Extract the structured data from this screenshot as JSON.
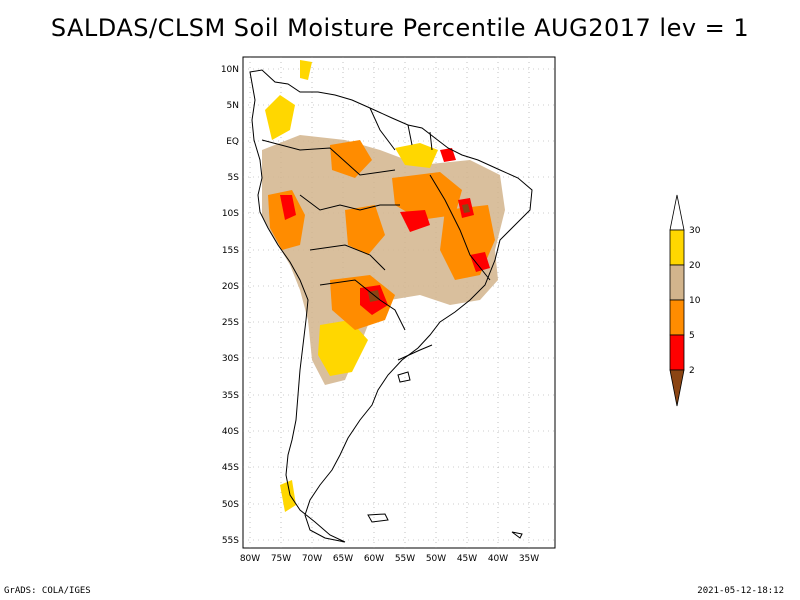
{
  "title": "SALDAS/CLSM Soil Moisture Percentile AUG2017 lev = 1",
  "footer": {
    "left": "GrADS: COLA/IGES",
    "right": "2021-05-12-18:12"
  },
  "map": {
    "lat_labels": [
      "10N",
      "5N",
      "EQ",
      "5S",
      "10S",
      "15S",
      "20S",
      "25S",
      "30S",
      "35S",
      "40S",
      "45S",
      "50S",
      "55S"
    ],
    "lat_values": [
      10,
      5,
      0,
      -5,
      -10,
      -15,
      -20,
      -25,
      -30,
      -35,
      -40,
      -45,
      -50,
      -55
    ],
    "lon_labels": [
      "80W",
      "75W",
      "70W",
      "65W",
      "60W",
      "55W",
      "50W",
      "45W",
      "40W",
      "35W"
    ],
    "lon_values": [
      -80,
      -75,
      -70,
      -65,
      -60,
      -55,
      -50,
      -45,
      -40,
      -35
    ]
  },
  "colorbar": {
    "labels": [
      "2",
      "5",
      "10",
      "20",
      "30"
    ],
    "colors": {
      "lt2": "#8b4513",
      "2_5": "#ff0000",
      "5_10": "#ff8c00",
      "10_20": "#d2b48c",
      "20_30": "#ffd700",
      "gt30": "#ffffff"
    }
  }
}
